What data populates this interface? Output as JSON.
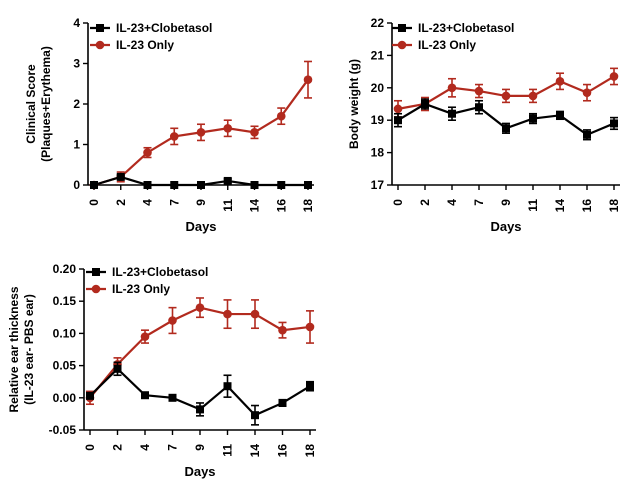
{
  "chart_data": [
    {
      "id": "clinical",
      "type": "line",
      "categories": [
        "0",
        "2",
        "4",
        "7",
        "9",
        "11",
        "14",
        "16",
        "18"
      ],
      "ylabel_lines": [
        "Clinical Score",
        "(Plaques+Erythema)"
      ],
      "xlabel": "Days",
      "ylim": [
        0,
        4
      ],
      "yticks": [
        0,
        1,
        2,
        3,
        4
      ],
      "ytick_labels": [
        "0",
        "1",
        "2",
        "3",
        "4"
      ],
      "legend_position": "top-left",
      "series": [
        {
          "name": "IL-23+Clobetasol",
          "marker": "square",
          "color": "#000000",
          "values": [
            0,
            0.2,
            0,
            0,
            0,
            0.1,
            0,
            0,
            0
          ],
          "errors": [
            0,
            0.05,
            0,
            0,
            0,
            0.05,
            0,
            0,
            0
          ]
        },
        {
          "name": "IL-23 Only",
          "marker": "circle",
          "color": "#b22a1e",
          "values": [
            0,
            0.2,
            0.8,
            1.2,
            1.3,
            1.4,
            1.3,
            1.7,
            2.6
          ],
          "errors": [
            0.02,
            0.12,
            0.12,
            0.2,
            0.2,
            0.2,
            0.15,
            0.2,
            0.45
          ]
        }
      ]
    },
    {
      "id": "bodyweight",
      "type": "line",
      "categories": [
        "0",
        "2",
        "4",
        "7",
        "9",
        "11",
        "14",
        "16",
        "18"
      ],
      "ylabel_lines": [
        "Body weight (g)"
      ],
      "xlabel": "Days",
      "ylim": [
        17,
        22
      ],
      "yticks": [
        17,
        18,
        19,
        20,
        21,
        22
      ],
      "ytick_labels": [
        "17",
        "18",
        "19",
        "20",
        "21",
        "22"
      ],
      "legend_position": "top",
      "series": [
        {
          "name": "IL-23+Clobetasol",
          "marker": "square",
          "color": "#000000",
          "values": [
            19.0,
            19.5,
            19.2,
            19.4,
            18.75,
            19.05,
            19.15,
            18.55,
            18.9
          ],
          "errors": [
            0.2,
            0.15,
            0.2,
            0.2,
            0.15,
            0.15,
            0.12,
            0.15,
            0.18
          ]
        },
        {
          "name": "IL-23 Only",
          "marker": "circle",
          "color": "#b22a1e",
          "values": [
            19.35,
            19.5,
            20.0,
            19.9,
            19.75,
            19.75,
            20.2,
            19.85,
            20.35
          ],
          "errors": [
            0.25,
            0.2,
            0.28,
            0.2,
            0.2,
            0.2,
            0.25,
            0.25,
            0.25
          ]
        }
      ]
    },
    {
      "id": "ear",
      "type": "line",
      "categories": [
        "0",
        "2",
        "4",
        "7",
        "9",
        "11",
        "14",
        "16",
        "18"
      ],
      "ylabel_lines": [
        "Relative ear thickness",
        "(IL-23 ear- PBS ear)"
      ],
      "xlabel": "Days",
      "ylim": [
        -0.05,
        0.2
      ],
      "yticks": [
        -0.05,
        0,
        0.05,
        0.1,
        0.15,
        0.2
      ],
      "ytick_labels": [
        "-0.05",
        "0.00",
        "0.05",
        "0.10",
        "0.15",
        "0.20"
      ],
      "legend_position": "top",
      "series": [
        {
          "name": "IL-23+Clobetasol",
          "marker": "square",
          "color": "#000000",
          "values": [
            0.003,
            0.045,
            0.004,
            0.0,
            -0.018,
            0.018,
            -0.027,
            -0.008,
            0.018
          ],
          "errors": [
            0.004,
            0.01,
            0.002,
            0.002,
            0.01,
            0.017,
            0.015,
            0.005,
            0.007
          ]
        },
        {
          "name": "IL-23 Only",
          "marker": "circle",
          "color": "#b22a1e",
          "values": [
            0.0,
            0.052,
            0.095,
            0.12,
            0.14,
            0.13,
            0.13,
            0.105,
            0.11
          ],
          "errors": [
            0.01,
            0.01,
            0.01,
            0.02,
            0.015,
            0.022,
            0.022,
            0.012,
            0.025
          ]
        }
      ]
    }
  ]
}
